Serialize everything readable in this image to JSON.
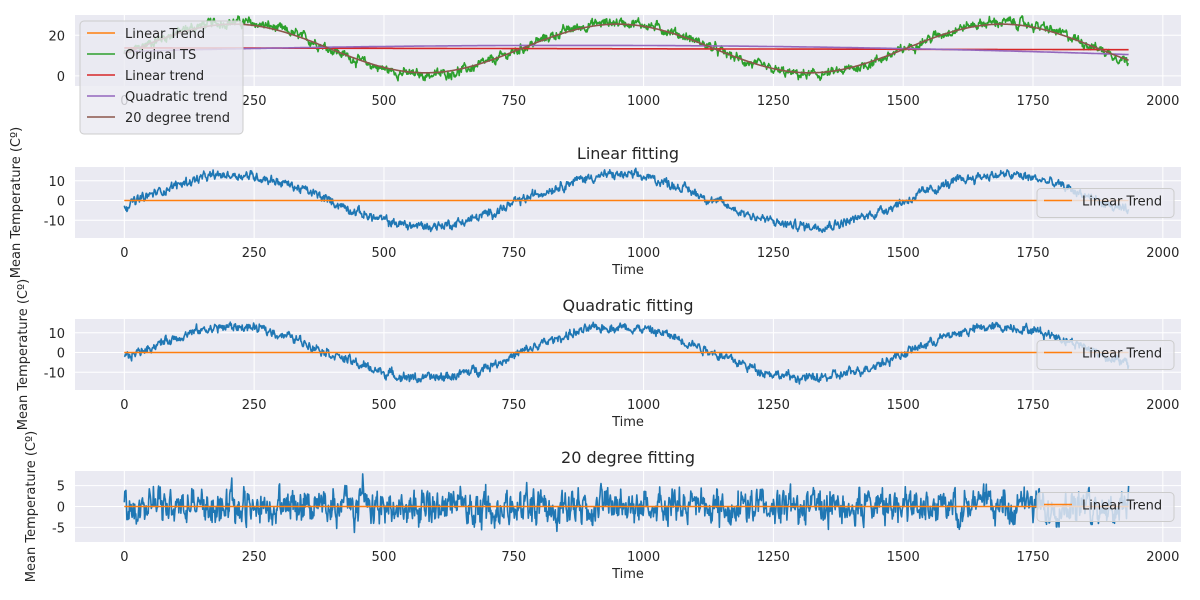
{
  "colors": {
    "background": "#eaeaf2",
    "grid": "#ffffff",
    "series_blue": "#1f77b4",
    "orange": "#ff7f0e",
    "green": "#2ca02c",
    "red": "#d62728",
    "purple": "#9467bd",
    "brown": "#8c564b"
  },
  "chart_data": [
    {
      "type": "line",
      "title": "",
      "xlabel": "",
      "ylabel": "",
      "xlim": [
        -95,
        2035
      ],
      "ylim": [
        -5,
        30
      ],
      "xticks": [
        0,
        250,
        500,
        750,
        1000,
        1250,
        1500,
        1750,
        2000
      ],
      "yticks": [
        0,
        20
      ],
      "legend": "upper left",
      "n_points": 1935,
      "series": [
        {
          "name": "Linear Trend",
          "kind": "constant",
          "value": 0,
          "visible_in_plot": false
        },
        {
          "name": "Original TS",
          "kind": "sine_noisy",
          "mean": 13.5,
          "amplitude": 13,
          "peaks_at": [
            210,
            580,
            950,
            1320,
            1680
          ],
          "noise_amplitude": 3
        },
        {
          "name": "Linear trend",
          "kind": "linear",
          "y_at_start": 13.8,
          "y_at_end": 12.9
        },
        {
          "name": "Quadratic trend",
          "kind": "quadratic",
          "points": [
            [
              0,
              12.0
            ],
            [
              967,
              15.0
            ],
            [
              1934,
              10.5
            ]
          ]
        },
        {
          "name": "20 degree trend",
          "kind": "sine_smooth",
          "mean": 13.5,
          "amplitude": 12,
          "peaks_at": [
            210,
            580,
            950,
            1320,
            1680
          ]
        }
      ]
    },
    {
      "type": "line",
      "title": "Linear fitting",
      "xlabel": "Time",
      "ylabel": "Mean Temperature (Cº)",
      "xlim": [
        -95,
        2035
      ],
      "ylim": [
        -19,
        17
      ],
      "xticks": [
        0,
        250,
        500,
        750,
        1000,
        1250,
        1500,
        1750,
        2000
      ],
      "yticks": [
        -10,
        0,
        10
      ],
      "legend": "right",
      "n_points": 1935,
      "series": [
        {
          "name": "",
          "kind": "sine_noisy",
          "mean": 0,
          "amplitude": 13,
          "peaks_at": [
            210,
            580,
            950,
            1320,
            1680
          ],
          "noise_amplitude": 3
        },
        {
          "name": "Linear Trend",
          "kind": "constant",
          "value": 0
        }
      ]
    },
    {
      "type": "line",
      "title": "Quadratic fitting",
      "xlabel": "Time",
      "ylabel": "Mean Temperature (Cº)",
      "xlim": [
        -95,
        2035
      ],
      "ylim": [
        -19,
        17
      ],
      "xticks": [
        0,
        250,
        500,
        750,
        1000,
        1250,
        1500,
        1750,
        2000
      ],
      "yticks": [
        -10,
        0,
        10
      ],
      "legend": "right",
      "n_points": 1935,
      "series": [
        {
          "name": "",
          "kind": "sine_noisy",
          "mean": 0,
          "amplitude": 13,
          "peaks_at": [
            210,
            580,
            950,
            1320,
            1680
          ],
          "noise_amplitude": 3
        },
        {
          "name": "Linear Trend",
          "kind": "constant",
          "value": 0
        }
      ]
    },
    {
      "type": "line",
      "title": "20 degree fitting",
      "xlabel": "Time",
      "ylabel": "Mean Temperature (Cº)",
      "xlim": [
        -95,
        2035
      ],
      "ylim": [
        -8.5,
        8.5
      ],
      "xticks": [
        0,
        250,
        500,
        750,
        1000,
        1250,
        1500,
        1750,
        2000
      ],
      "yticks": [
        -5,
        0,
        5
      ],
      "legend": "right",
      "n_points": 1935,
      "series": [
        {
          "name": "",
          "kind": "noise",
          "mean": 0,
          "amplitude": 6
        },
        {
          "name": "Linear Trend",
          "kind": "constant",
          "value": 0
        }
      ]
    }
  ]
}
